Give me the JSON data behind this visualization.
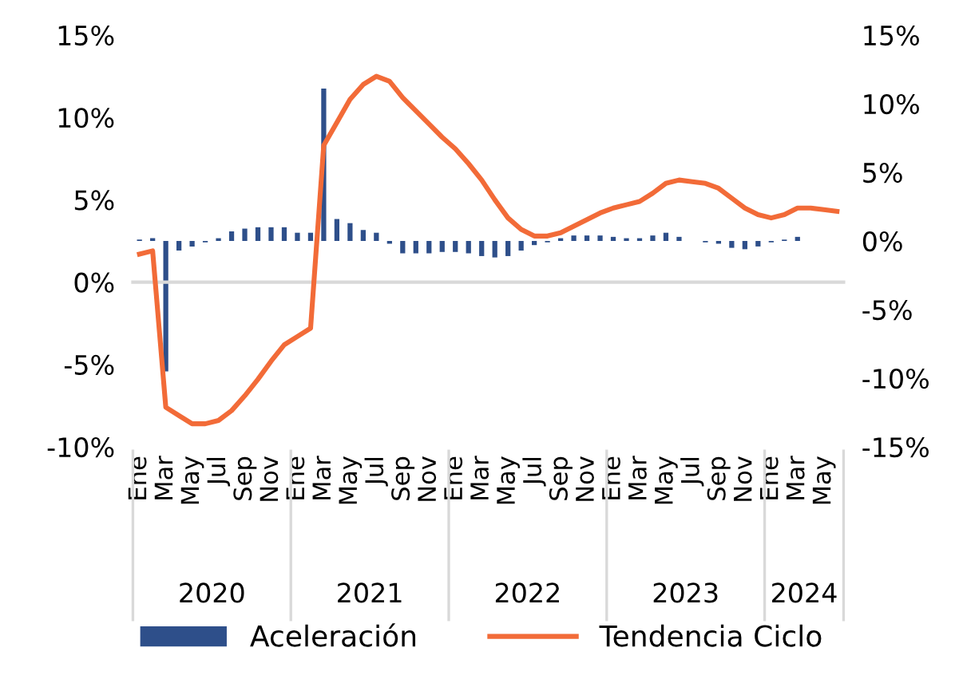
{
  "chart_data": {
    "type": "bar",
    "categories": [
      "Ene",
      null,
      "Mar",
      null,
      "May",
      null,
      "Jul",
      null,
      "Sep",
      null,
      "Nov",
      null,
      "Ene",
      null,
      "Mar",
      null,
      "May",
      null,
      "Jul",
      null,
      "Sep",
      null,
      "Nov",
      null,
      "Ene",
      null,
      "Mar",
      null,
      "May",
      null,
      "Jul",
      null,
      "Sep",
      null,
      "Nov",
      null,
      "Ene",
      null,
      "Mar",
      null,
      "May",
      null,
      "Jul",
      null,
      "Sep",
      null,
      "Nov",
      null,
      "Ene",
      null,
      "Mar",
      null,
      "May",
      null
    ],
    "annotations": [
      "2020",
      "2021",
      "2022",
      "2023",
      "2024"
    ],
    "series": [
      {
        "name": "Aceleración",
        "axis": "y2",
        "color": "#2e4f8a",
        "values": [
          0.1,
          0.2,
          -9.5,
          -0.7,
          -0.4,
          -0.1,
          0.2,
          0.7,
          0.9,
          1.0,
          1.0,
          1.0,
          0.6,
          0.6,
          11.1,
          1.6,
          1.3,
          0.8,
          0.6,
          -0.2,
          -0.9,
          -0.9,
          -0.9,
          -0.8,
          -0.8,
          -0.9,
          -1.1,
          -1.2,
          -1.1,
          -0.7,
          -0.3,
          -0.1,
          0.2,
          0.4,
          0.4,
          0.4,
          0.3,
          0.2,
          0.2,
          0.4,
          0.6,
          0.3,
          0.0,
          -0.1,
          -0.2,
          -0.5,
          -0.6,
          -0.4,
          -0.1,
          0.1,
          0.3,
          0.0,
          0.0,
          0.0
        ]
      },
      {
        "name": "Tendencia Ciclo",
        "type": "line",
        "color": "#f26b38",
        "values": [
          1.7,
          1.9,
          -7.6,
          -8.1,
          -8.6,
          -8.6,
          -8.4,
          -7.8,
          -6.9,
          -5.9,
          -4.8,
          -3.8,
          -3.3,
          -2.8,
          8.3,
          9.7,
          11.1,
          12.0,
          12.5,
          12.2,
          11.2,
          10.4,
          9.6,
          8.8,
          8.1,
          7.2,
          6.2,
          5.0,
          3.9,
          3.2,
          2.8,
          2.8,
          3.0,
          3.4,
          3.8,
          4.2,
          4.5,
          4.7,
          4.9,
          5.4,
          6.0,
          6.2,
          6.1,
          6.0,
          5.7,
          5.1,
          4.5,
          4.1,
          3.9,
          4.1,
          4.5,
          4.5,
          4.4,
          4.3
        ]
      }
    ],
    "ylim": [
      -10,
      15
    ],
    "yticks": [
      {
        "value": -10,
        "label": "-10%"
      },
      {
        "value": -5,
        "label": "-5%"
      },
      {
        "value": 0,
        "label": "0%"
      },
      {
        "value": 5,
        "label": "5%"
      },
      {
        "value": 10,
        "label": "10%"
      },
      {
        "value": 15,
        "label": "15%"
      }
    ],
    "y2lim": [
      -15,
      15
    ],
    "y2ticks": [
      {
        "value": -15,
        "label": "-15%"
      },
      {
        "value": -10,
        "label": "-10%"
      },
      {
        "value": -5,
        "label": "-5%"
      },
      {
        "value": 0,
        "label": "0%"
      },
      {
        "value": 5,
        "label": "5%"
      },
      {
        "value": 10,
        "label": "10%"
      },
      {
        "value": 15,
        "label": "15%"
      }
    ],
    "legend": "bottom"
  }
}
